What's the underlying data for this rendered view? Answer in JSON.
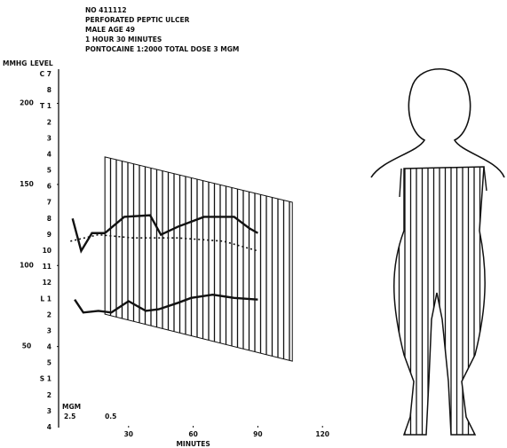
{
  "chart_data": {
    "type": "line",
    "notes": [
      "NO 411112",
      "PERFORATED PEPTIC ULCER",
      "MALE AGE 49",
      "1 HOUR 30 MINUTES",
      "PONTOCAINE 1:2000   TOTAL DOSE 3 MGM"
    ],
    "y_label": "MMHG",
    "level_label": "LEVEL",
    "levels": [
      "C 7",
      "8",
      "T 1",
      "2",
      "3",
      "4",
      "5",
      "6",
      "7",
      "8",
      "9",
      "10",
      "11",
      "12",
      "L 1",
      "2",
      "3",
      "4",
      "5",
      "S 1",
      "2",
      "3",
      "4"
    ],
    "x_label": "MINUTES",
    "xlim": [
      0,
      150
    ],
    "xticks": [
      30,
      60,
      90,
      120
    ],
    "ylim": [
      0,
      210
    ],
    "yticks": [
      50,
      100,
      150,
      200
    ],
    "color": "#111111",
    "series": [
      {
        "style": "solid",
        "x": [
          4,
          8,
          13,
          19,
          28,
          40,
          45,
          53,
          65,
          79,
          86,
          90
        ],
        "values": [
          129,
          109,
          120,
          120,
          130,
          131,
          119,
          124,
          130,
          130,
          123,
          120
        ]
      },
      {
        "style": "dotted",
        "x": [
          3,
          16,
          32,
          53,
          74,
          90
        ],
        "values": [
          115,
          119,
          117,
          117,
          115,
          109
        ]
      },
      {
        "style": "solid",
        "x": [
          5,
          9,
          16,
          22,
          30,
          38,
          44,
          53,
          59,
          69,
          79,
          90
        ],
        "values": [
          79,
          71,
          72,
          71,
          78,
          72,
          73,
          77,
          80,
          82,
          80,
          79
        ]
      }
    ],
    "band": {
      "x": [
        19,
        106
      ],
      "upper": [
        167,
        139
      ],
      "lower": [
        70,
        41
      ]
    },
    "dose_unit": "MGM",
    "doses": [
      {
        "label": "2.5",
        "x": 0
      },
      {
        "label": "0.5",
        "x": 19
      }
    ]
  }
}
